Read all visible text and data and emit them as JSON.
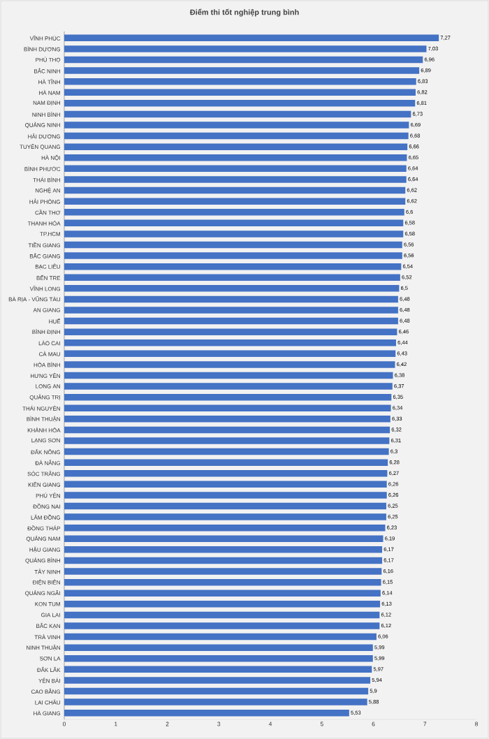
{
  "chart_data": {
    "type": "bar",
    "orientation": "horizontal",
    "title": "Điểm thi tốt nghiệp trung bình",
    "categories": [
      "VĨNH PHÚC",
      "BÌNH DƯƠNG",
      "PHÚ THỌ",
      "BẮC NINH",
      "HÀ TĨNH",
      "HÀ NAM",
      "NAM ĐỊNH",
      "NINH BÌNH",
      "QUẢNG NINH",
      "HẢI DƯƠNG",
      "TUYÊN QUANG",
      "HÀ NỘI",
      "BÌNH PHƯỚC",
      "THÁI BÌNH",
      "NGHỆ AN",
      "HẢI PHÒNG",
      "CẦN THƠ",
      "THANH HÓA",
      "TP.HCM",
      "TIỀN GIANG",
      "BẮC GIANG",
      "BẠC LIÊU",
      "BẾN TRE",
      "VĨNH LONG",
      "BÀ RỊA - VŨNG TÀU",
      "AN GIANG",
      "HUẾ",
      "BÌNH ĐỊNH",
      "LÀO CAI",
      "CÀ MAU",
      "HÒA BÌNH",
      "HƯNG YÊN",
      "LONG AN",
      "QUẢNG TRỊ",
      "THÁI NGUYÊN",
      "BÌNH THUẬN",
      "KHÁNH HÒA",
      "LẠNG SƠN",
      "ĐẮK NÔNG",
      "ĐÀ NẴNG",
      "SÓC TRĂNG",
      "KIÊN GIANG",
      "PHÚ YÊN",
      "ĐỒNG NAI",
      "LÂM ĐỒNG",
      "ĐỒNG THÁP",
      "QUẢNG NAM",
      "HẬU GIANG",
      "QUẢNG BÌNH",
      "TÂY NINH",
      "ĐIỆN BIÊN",
      "QUẢNG NGÃI",
      "KON TUM",
      "GIA LAI",
      "BẮC KẠN",
      "TRÀ VINH",
      "NINH THUẬN",
      "SƠN LA",
      "ĐẮK LẮK",
      "YÊN BÁI",
      "CAO BẰNG",
      "LAI CHÂU",
      "HÀ GIANG"
    ],
    "values": [
      7.27,
      7.03,
      6.96,
      6.89,
      6.83,
      6.82,
      6.81,
      6.73,
      6.69,
      6.68,
      6.66,
      6.65,
      6.64,
      6.64,
      6.62,
      6.62,
      6.6,
      6.58,
      6.58,
      6.56,
      6.56,
      6.54,
      6.52,
      6.5,
      6.48,
      6.48,
      6.48,
      6.46,
      6.44,
      6.43,
      6.42,
      6.38,
      6.37,
      6.35,
      6.34,
      6.33,
      6.32,
      6.31,
      6.3,
      6.28,
      6.27,
      6.26,
      6.26,
      6.25,
      6.25,
      6.23,
      6.19,
      6.17,
      6.17,
      6.16,
      6.15,
      6.14,
      6.13,
      6.12,
      6.12,
      6.06,
      5.99,
      5.99,
      5.97,
      5.94,
      5.9,
      5.88,
      5.53
    ],
    "value_labels": [
      "7,27",
      "7,03",
      "6,96",
      "6,89",
      "6,83",
      "6,82",
      "6,81",
      "6,73",
      "6,69",
      "6,68",
      "6,66",
      "6,65",
      "6,64",
      "6,64",
      "6,62",
      "6,62",
      "6,6",
      "6,58",
      "6,58",
      "6,56",
      "6,56",
      "6,54",
      "6,52",
      "6,5",
      "6,48",
      "6,48",
      "6,48",
      "6,46",
      "6,44",
      "6,43",
      "6,42",
      "6,38",
      "6,37",
      "6,35",
      "6,34",
      "6,33",
      "6,32",
      "6,31",
      "6,3",
      "6,28",
      "6,27",
      "6,26",
      "6,26",
      "6,25",
      "6,25",
      "6,23",
      "6,19",
      "6,17",
      "6,17",
      "6,16",
      "6,15",
      "6,14",
      "6,13",
      "6,12",
      "6,12",
      "6,06",
      "5,99",
      "5,99",
      "5,97",
      "5,94",
      "5,9",
      "5,88",
      "5,53"
    ],
    "color": "#4472c4",
    "xlim": [
      0,
      8
    ],
    "xticks": [
      0,
      1,
      2,
      3,
      4,
      5,
      6,
      7,
      8
    ]
  }
}
